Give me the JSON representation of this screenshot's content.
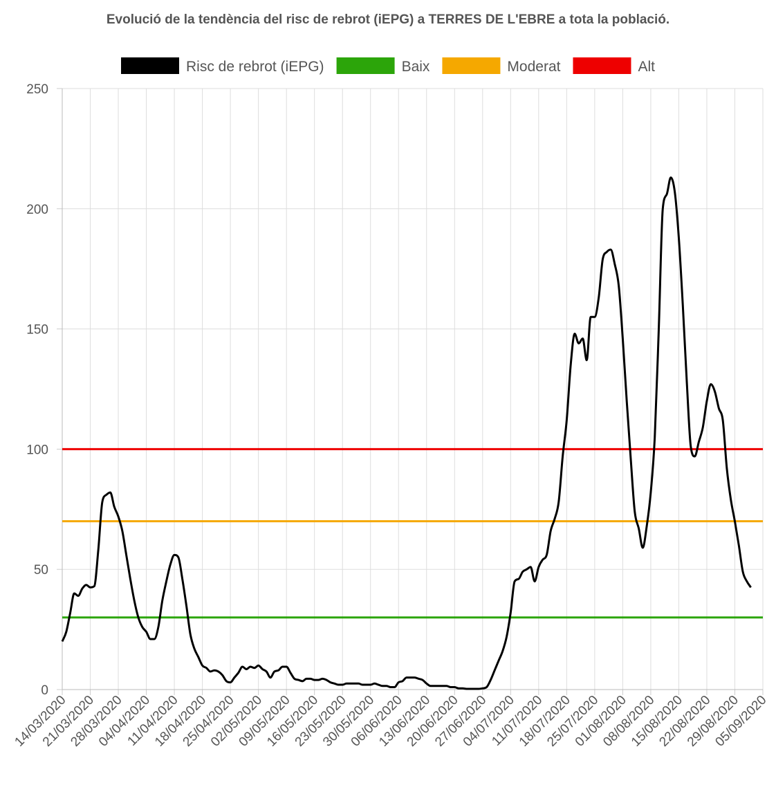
{
  "chart_data": {
    "type": "line",
    "title": "Evolució de la tendència del risc de rebrot (iEPG) a TERRES DE L'EBRE a tota la població.",
    "x_tick_labels": [
      "14/03/2020",
      "21/03/2020",
      "28/03/2020",
      "04/04/2020",
      "11/04/2020",
      "18/04/2020",
      "25/04/2020",
      "02/05/2020",
      "09/05/2020",
      "16/05/2020",
      "23/05/2020",
      "30/05/2020",
      "06/06/2020",
      "13/06/2020",
      "20/06/2020",
      "27/06/2020",
      "04/07/2020",
      "11/07/2020",
      "18/07/2020",
      "25/07/2020",
      "01/08/2020",
      "08/08/2020",
      "15/08/2020",
      "22/08/2020",
      "29/08/2020",
      "05/09/2020"
    ],
    "x_range": [
      "14/03/2020",
      "05/09/2020"
    ],
    "ylim": [
      0,
      250
    ],
    "y_ticks": [
      0,
      50,
      100,
      150,
      200,
      250
    ],
    "grid": true,
    "legend_position": "top",
    "series": [
      {
        "name": "Risc de rebrot (iEPG)",
        "color": "#000000",
        "points": [
          [
            "14/03/2020",
            20
          ],
          [
            "15/03/2020",
            24
          ],
          [
            "16/03/2020",
            32
          ],
          [
            "17/03/2020",
            40
          ],
          [
            "18/03/2020",
            39
          ],
          [
            "19/03/2020",
            42
          ],
          [
            "20/03/2020",
            43.5
          ],
          [
            "21/03/2020",
            42.5
          ],
          [
            "22/03/2020",
            43
          ],
          [
            "23/03/2020",
            58
          ],
          [
            "24/03/2020",
            78
          ],
          [
            "25/03/2020",
            81
          ],
          [
            "26/03/2020",
            82
          ],
          [
            "27/03/2020",
            76
          ],
          [
            "28/03/2020",
            72
          ],
          [
            "29/03/2020",
            66
          ],
          [
            "30/03/2020",
            56
          ],
          [
            "31/03/2020",
            46
          ],
          [
            "01/04/2020",
            37
          ],
          [
            "02/04/2020",
            30
          ],
          [
            "03/04/2020",
            26
          ],
          [
            "04/04/2020",
            24
          ],
          [
            "05/04/2020",
            21
          ],
          [
            "06/04/2020",
            21
          ],
          [
            "07/04/2020",
            26
          ],
          [
            "08/04/2020",
            37
          ],
          [
            "09/04/2020",
            45
          ],
          [
            "10/04/2020",
            52
          ],
          [
            "11/04/2020",
            56
          ],
          [
            "12/04/2020",
            55
          ],
          [
            "13/04/2020",
            46
          ],
          [
            "14/04/2020",
            35
          ],
          [
            "15/04/2020",
            23
          ],
          [
            "16/04/2020",
            17
          ],
          [
            "17/04/2020",
            13.5
          ],
          [
            "18/04/2020",
            10
          ],
          [
            "19/04/2020",
            9
          ],
          [
            "20/04/2020",
            7.5
          ],
          [
            "21/04/2020",
            8
          ],
          [
            "22/04/2020",
            7.5
          ],
          [
            "23/04/2020",
            6
          ],
          [
            "24/04/2020",
            3.5
          ],
          [
            "25/04/2020",
            3
          ],
          [
            "26/04/2020",
            5
          ],
          [
            "27/04/2020",
            7
          ],
          [
            "28/04/2020",
            9.5
          ],
          [
            "29/04/2020",
            8.5
          ],
          [
            "30/04/2020",
            9.5
          ],
          [
            "01/05/2020",
            9
          ],
          [
            "02/05/2020",
            10
          ],
          [
            "03/05/2020",
            8.5
          ],
          [
            "04/05/2020",
            7.5
          ],
          [
            "05/05/2020",
            5
          ],
          [
            "06/05/2020",
            7.5
          ],
          [
            "07/05/2020",
            8
          ],
          [
            "08/05/2020",
            9.5
          ],
          [
            "09/05/2020",
            9.5
          ],
          [
            "10/05/2020",
            7
          ],
          [
            "11/05/2020",
            4.5
          ],
          [
            "12/05/2020",
            4
          ],
          [
            "13/05/2020",
            3.5
          ],
          [
            "14/05/2020",
            4.5
          ],
          [
            "15/05/2020",
            4.5
          ],
          [
            "16/05/2020",
            4
          ],
          [
            "17/05/2020",
            4
          ],
          [
            "18/05/2020",
            4.5
          ],
          [
            "19/05/2020",
            4
          ],
          [
            "20/05/2020",
            3
          ],
          [
            "21/05/2020",
            2.5
          ],
          [
            "22/05/2020",
            2
          ],
          [
            "23/05/2020",
            2
          ],
          [
            "24/05/2020",
            2.5
          ],
          [
            "25/05/2020",
            2.5
          ],
          [
            "26/05/2020",
            2.5
          ],
          [
            "27/05/2020",
            2.5
          ],
          [
            "28/05/2020",
            2
          ],
          [
            "29/05/2020",
            2
          ],
          [
            "30/05/2020",
            2
          ],
          [
            "31/05/2020",
            2.5
          ],
          [
            "01/06/2020",
            2
          ],
          [
            "02/06/2020",
            1.5
          ],
          [
            "03/06/2020",
            1.5
          ],
          [
            "04/06/2020",
            1
          ],
          [
            "05/06/2020",
            1
          ],
          [
            "06/06/2020",
            3
          ],
          [
            "07/06/2020",
            3.5
          ],
          [
            "08/06/2020",
            5
          ],
          [
            "09/06/2020",
            5
          ],
          [
            "10/06/2020",
            5
          ],
          [
            "11/06/2020",
            4.5
          ],
          [
            "12/06/2020",
            4
          ],
          [
            "13/06/2020",
            2.5
          ],
          [
            "14/06/2020",
            1.5
          ],
          [
            "15/06/2020",
            1.5
          ],
          [
            "16/06/2020",
            1.5
          ],
          [
            "17/06/2020",
            1.5
          ],
          [
            "18/06/2020",
            1.5
          ],
          [
            "19/06/2020",
            1
          ],
          [
            "20/06/2020",
            1
          ],
          [
            "21/06/2020",
            0.5
          ],
          [
            "22/06/2020",
            0.5
          ],
          [
            "23/06/2020",
            0.3
          ],
          [
            "24/06/2020",
            0.3
          ],
          [
            "25/06/2020",
            0.3
          ],
          [
            "26/06/2020",
            0.3
          ],
          [
            "27/06/2020",
            0.5
          ],
          [
            "28/06/2020",
            1
          ],
          [
            "29/06/2020",
            4
          ],
          [
            "30/06/2020",
            8
          ],
          [
            "01/07/2020",
            12
          ],
          [
            "02/07/2020",
            16
          ],
          [
            "03/07/2020",
            22
          ],
          [
            "04/07/2020",
            32
          ],
          [
            "05/07/2020",
            45
          ],
          [
            "06/07/2020",
            46
          ],
          [
            "07/07/2020",
            49
          ],
          [
            "08/07/2020",
            50
          ],
          [
            "09/07/2020",
            51
          ],
          [
            "10/07/2020",
            45
          ],
          [
            "11/07/2020",
            51
          ],
          [
            "12/07/2020",
            54
          ],
          [
            "13/07/2020",
            56
          ],
          [
            "14/07/2020",
            66
          ],
          [
            "15/07/2020",
            71
          ],
          [
            "16/07/2020",
            78
          ],
          [
            "17/07/2020",
            97
          ],
          [
            "18/07/2020",
            112
          ],
          [
            "19/07/2020",
            135
          ],
          [
            "20/07/2020",
            148
          ],
          [
            "21/07/2020",
            144
          ],
          [
            "22/07/2020",
            146
          ],
          [
            "23/07/2020",
            137
          ],
          [
            "24/07/2020",
            155
          ],
          [
            "25/07/2020",
            155
          ],
          [
            "26/07/2020",
            163
          ],
          [
            "27/07/2020",
            179
          ],
          [
            "28/07/2020",
            182
          ],
          [
            "29/07/2020",
            183
          ],
          [
            "30/07/2020",
            177
          ],
          [
            "31/07/2020",
            168
          ],
          [
            "01/08/2020",
            146
          ],
          [
            "02/08/2020",
            120
          ],
          [
            "03/08/2020",
            96
          ],
          [
            "04/08/2020",
            74
          ],
          [
            "05/08/2020",
            67
          ],
          [
            "06/08/2020",
            59
          ],
          [
            "07/08/2020",
            68
          ],
          [
            "08/08/2020",
            82
          ],
          [
            "09/08/2020",
            105
          ],
          [
            "10/08/2020",
            150
          ],
          [
            "11/08/2020",
            200
          ],
          [
            "12/08/2020",
            206
          ],
          [
            "13/08/2020",
            213
          ],
          [
            "14/08/2020",
            207
          ],
          [
            "15/08/2020",
            188
          ],
          [
            "16/08/2020",
            160
          ],
          [
            "17/08/2020",
            128
          ],
          [
            "18/08/2020",
            101
          ],
          [
            "19/08/2020",
            97
          ],
          [
            "20/08/2020",
            103
          ],
          [
            "21/08/2020",
            109
          ],
          [
            "22/08/2020",
            120
          ],
          [
            "23/08/2020",
            127
          ],
          [
            "24/08/2020",
            124
          ],
          [
            "25/08/2020",
            117
          ],
          [
            "26/08/2020",
            112
          ],
          [
            "27/08/2020",
            92
          ],
          [
            "28/08/2020",
            79
          ],
          [
            "29/08/2020",
            70
          ],
          [
            "30/08/2020",
            60
          ],
          [
            "31/08/2020",
            49
          ],
          [
            "01/09/2020",
            45
          ],
          [
            "02/09/2020",
            42.5
          ]
        ]
      },
      {
        "name": "Baix",
        "color": "#2ca50a",
        "value": 30
      },
      {
        "name": "Moderat",
        "color": "#f5a800",
        "value": 70
      },
      {
        "name": "Alt",
        "color": "#ee0000",
        "value": 100
      }
    ]
  }
}
